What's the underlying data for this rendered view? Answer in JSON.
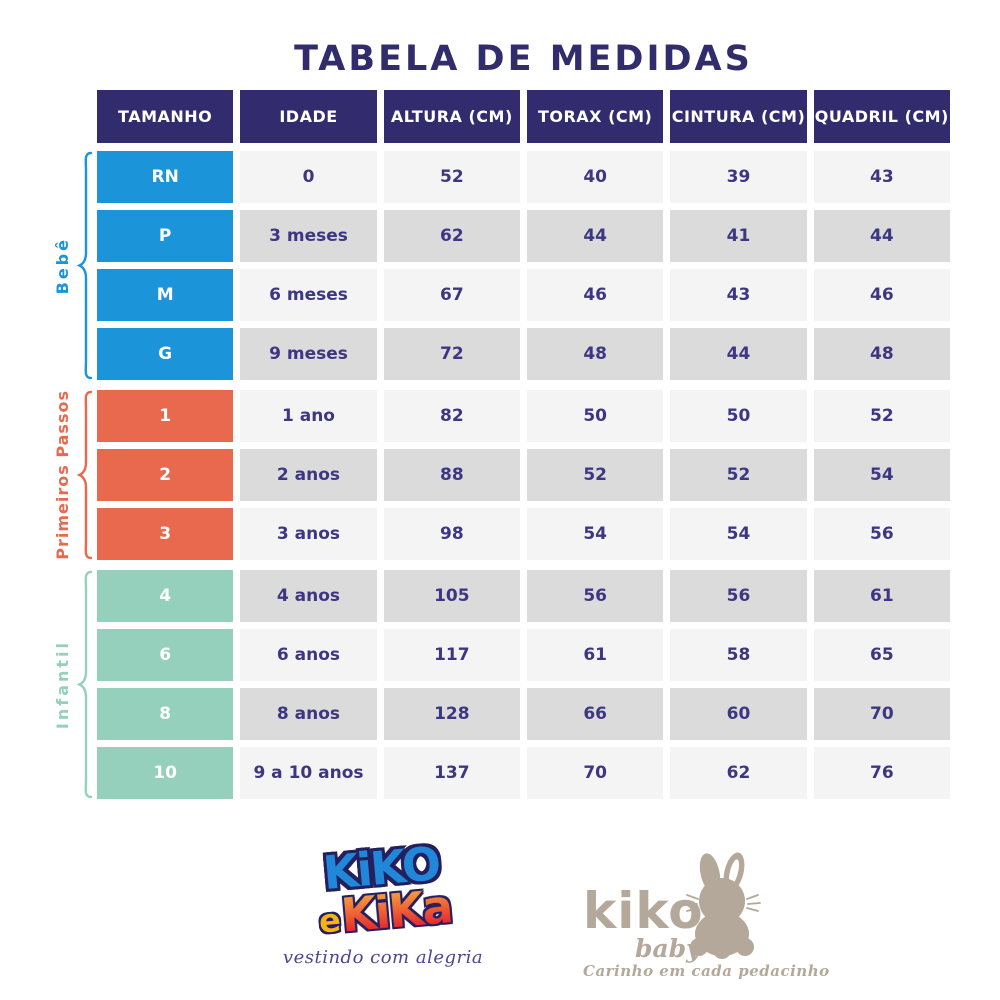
{
  "title": "TABELA DE MEDIDAS",
  "chart_data": {
    "type": "table",
    "title": "TABELA DE MEDIDAS",
    "columns": [
      "TAMANHO",
      "IDADE",
      "ALTURA (CM)",
      "TORAX (CM)",
      "CINTURA (CM)",
      "QUADRIL (CM)"
    ],
    "groups": [
      {
        "label": "Bebê",
        "color": "#1b94d9",
        "rows": [
          [
            "RN",
            "0",
            "52",
            "40",
            "39",
            "43"
          ],
          [
            "P",
            "3 meses",
            "62",
            "44",
            "41",
            "44"
          ],
          [
            "M",
            "6 meses",
            "67",
            "46",
            "43",
            "46"
          ],
          [
            "G",
            "9 meses",
            "72",
            "48",
            "44",
            "48"
          ]
        ]
      },
      {
        "label": "Primeiros Passos",
        "color": "#e9694f",
        "rows": [
          [
            "1",
            "1 ano",
            "82",
            "50",
            "50",
            "52"
          ],
          [
            "2",
            "2 anos",
            "88",
            "52",
            "52",
            "54"
          ],
          [
            "3",
            "3 anos",
            "98",
            "54",
            "54",
            "56"
          ]
        ]
      },
      {
        "label": "Infantil",
        "color": "#95d0bc",
        "rows": [
          [
            "4",
            "4 anos",
            "105",
            "56",
            "56",
            "61"
          ],
          [
            "6",
            "6 anos",
            "117",
            "61",
            "58",
            "65"
          ],
          [
            "8",
            "8 anos",
            "128",
            "66",
            "60",
            "70"
          ],
          [
            "10",
            "9 a 10 anos",
            "137",
            "70",
            "62",
            "76"
          ]
        ]
      }
    ]
  },
  "footer": {
    "kiko_kika": {
      "word1": "KiKO",
      "word2_e": "e",
      "word2": "KiKa",
      "tagline": "vestindo com alegria"
    },
    "kiko_baby": {
      "name": "kiko",
      "sub": "baby",
      "tagline": "Carinho em cada pedacinho"
    }
  },
  "colors": {
    "title": "#312c6b",
    "header_bg": "#322c6e",
    "cell_text": "#3d3683",
    "row_light": "#f4f4f4",
    "row_gray": "#dbdbdb",
    "bebe": "#1b94d9",
    "primeiros_passos": "#e9694f",
    "infantil": "#95d0bc",
    "taupe": "#b4a89a",
    "kiko_blue": "#2187d8",
    "e_yellow": "#f6b311",
    "kika_red": "#e6202d",
    "kika_orange": "#f59b3d",
    "outline_navy": "#241f5e",
    "script_navy": "#4c4794"
  }
}
